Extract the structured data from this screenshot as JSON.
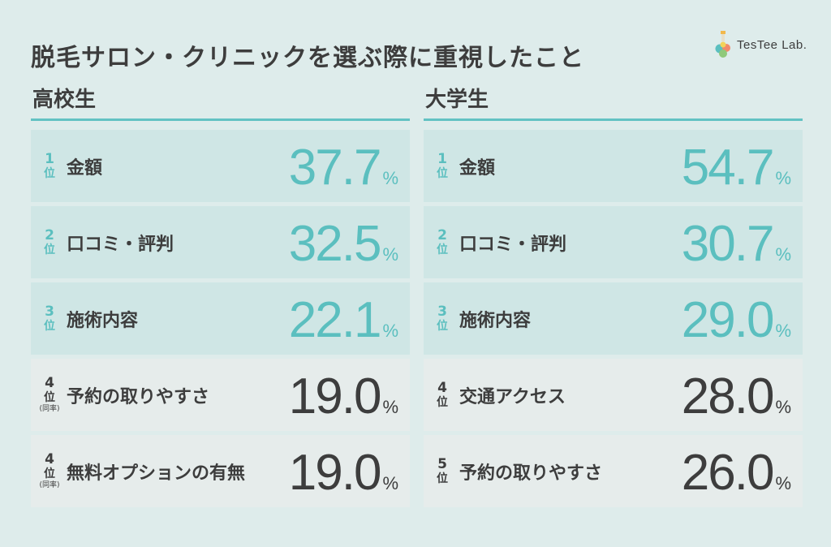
{
  "title": "脱毛サロン・クリニックを選ぶ際に重視したこと",
  "logo": {
    "text": "TesTee Lab."
  },
  "colors": {
    "accent": "#5bbfbf",
    "rule": "#62c2c3",
    "topRow": "#cfe6e5",
    "otherRow": "#e6eceb",
    "background": "#deeceb"
  },
  "rank_unit": "位",
  "percent_unit": "%",
  "chart_data": [
    {
      "type": "table",
      "title": "高校生",
      "items": [
        {
          "rank": "1",
          "label": "金額",
          "value": "37.7",
          "note": ""
        },
        {
          "rank": "2",
          "label": "口コミ・評判",
          "value": "32.5",
          "note": ""
        },
        {
          "rank": "3",
          "label": "施術内容",
          "value": "22.1",
          "note": ""
        },
        {
          "rank": "4",
          "label": "予約の取りやすさ",
          "value": "19.0",
          "note": "(同率)"
        },
        {
          "rank": "4",
          "label": "無料オプションの有無",
          "value": "19.0",
          "note": "(同率)"
        }
      ]
    },
    {
      "type": "table",
      "title": "大学生",
      "items": [
        {
          "rank": "1",
          "label": "金額",
          "value": "54.7",
          "note": ""
        },
        {
          "rank": "2",
          "label": "口コミ・評判",
          "value": "30.7",
          "note": ""
        },
        {
          "rank": "3",
          "label": "施術内容",
          "value": "29.0",
          "note": ""
        },
        {
          "rank": "4",
          "label": "交通アクセス",
          "value": "28.0",
          "note": ""
        },
        {
          "rank": "5",
          "label": "予約の取りやすさ",
          "value": "26.0",
          "note": ""
        }
      ]
    }
  ]
}
